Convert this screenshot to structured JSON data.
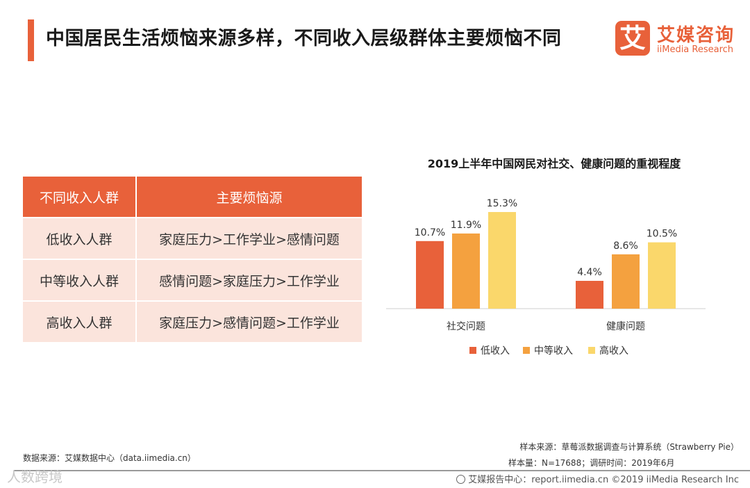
{
  "header": {
    "title": "中国居民生活烦恼来源多样，不同收入层级群体主要烦恼不同",
    "logo_mark": "艾",
    "logo_cn": "艾媒咨询",
    "logo_en": "iiMedia Research"
  },
  "table": {
    "headers": [
      "不同收入人群",
      "主要烦恼源"
    ],
    "rows": [
      [
        "低收入人群",
        "家庭压力>工作学业>感情问题"
      ],
      [
        "中等收入人群",
        "感情问题>家庭压力>工作学业"
      ],
      [
        "高收入人群",
        "家庭压力>感情问题>工作学业"
      ]
    ]
  },
  "chart_data": {
    "type": "bar",
    "title": "2019上半年中国网民对社交、健康问题的重视程度",
    "categories": [
      "社交问题",
      "健康问题"
    ],
    "series": [
      {
        "name": "低收入",
        "color": "#e8613a",
        "values": [
          10.7,
          4.4
        ]
      },
      {
        "name": "中等收入",
        "color": "#f4a13f",
        "values": [
          11.9,
          8.6
        ]
      },
      {
        "name": "高收入",
        "color": "#fad76b",
        "values": [
          15.3,
          10.5
        ]
      }
    ],
    "unit": "%",
    "xlabel": "",
    "ylabel": "",
    "ylim": [
      0,
      15.3
    ],
    "grid": false,
    "legend": "bottom"
  },
  "footer": {
    "data_source": "数据来源：艾媒数据中心（data.iimedia.cn）",
    "sample_source": "样本来源：草莓派数据调查与计算系统（Strawberry Pie）",
    "sample_size": "样本量：N=17688；调研时间：2019年6月",
    "report_center": "艾媒报告中心：report.iimedia.cn  ©2019  iiMedia Research  Inc",
    "watermark": "人数跨境"
  }
}
